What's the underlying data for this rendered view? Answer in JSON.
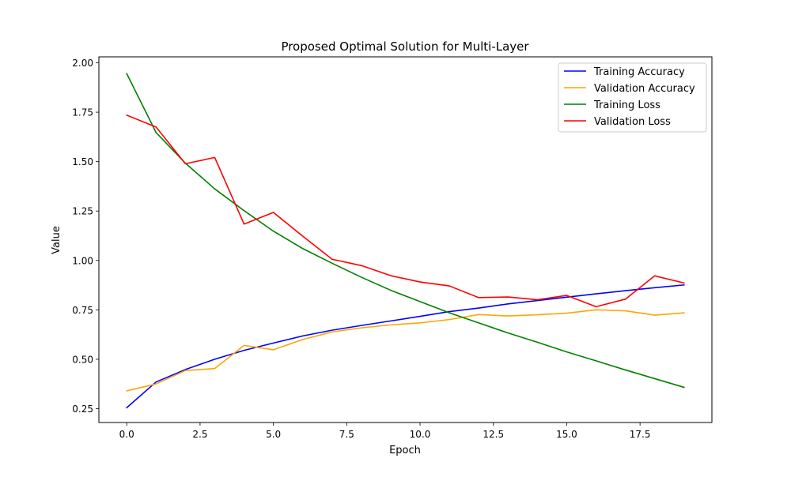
{
  "chart_data": {
    "type": "line",
    "title": "Proposed Optimal Solution for Multi-Layer",
    "xlabel": "Epoch",
    "ylabel": "Value",
    "xlim": [
      -0.95,
      19.95
    ],
    "ylim": [
      0.18,
      2.03
    ],
    "xticks": [
      0.0,
      2.5,
      5.0,
      7.5,
      10.0,
      12.5,
      15.0,
      17.5
    ],
    "xtick_labels": [
      "0.0",
      "2.5",
      "5.0",
      "7.5",
      "10.0",
      "12.5",
      "15.0",
      "17.5"
    ],
    "yticks": [
      0.25,
      0.5,
      0.75,
      1.0,
      1.25,
      1.5,
      1.75,
      2.0
    ],
    "ytick_labels": [
      "0.25",
      "0.50",
      "0.75",
      "1.00",
      "1.25",
      "1.50",
      "1.75",
      "2.00"
    ],
    "grid": false,
    "legend_position": "top-right",
    "x": [
      0,
      1,
      2,
      3,
      4,
      5,
      6,
      7,
      8,
      9,
      10,
      11,
      12,
      13,
      14,
      15,
      16,
      17,
      18,
      19
    ],
    "series": [
      {
        "name": "Training Accuracy",
        "color": "#0000ff",
        "values": [
          0.255,
          0.385,
          0.448,
          0.5,
          0.545,
          0.582,
          0.618,
          0.647,
          0.671,
          0.694,
          0.717,
          0.741,
          0.759,
          0.78,
          0.797,
          0.814,
          0.831,
          0.847,
          0.862,
          0.876
        ]
      },
      {
        "name": "Validation Accuracy",
        "color": "#ffa500",
        "values": [
          0.34,
          0.375,
          0.443,
          0.453,
          0.57,
          0.548,
          0.6,
          0.638,
          0.659,
          0.674,
          0.684,
          0.701,
          0.726,
          0.719,
          0.725,
          0.733,
          0.75,
          0.745,
          0.723,
          0.735
        ]
      },
      {
        "name": "Training Loss",
        "color": "#008000",
        "values": [
          1.945,
          1.647,
          1.492,
          1.362,
          1.252,
          1.148,
          1.06,
          0.986,
          0.915,
          0.849,
          0.792,
          0.735,
          0.684,
          0.633,
          0.586,
          0.537,
          0.492,
          0.446,
          0.402,
          0.358
        ]
      },
      {
        "name": "Validation Loss",
        "color": "#ff0000",
        "values": [
          1.735,
          1.675,
          1.489,
          1.521,
          1.184,
          1.243,
          1.123,
          1.006,
          0.974,
          0.923,
          0.891,
          0.871,
          0.812,
          0.815,
          0.801,
          0.823,
          0.766,
          0.804,
          0.922,
          0.886
        ]
      }
    ]
  }
}
